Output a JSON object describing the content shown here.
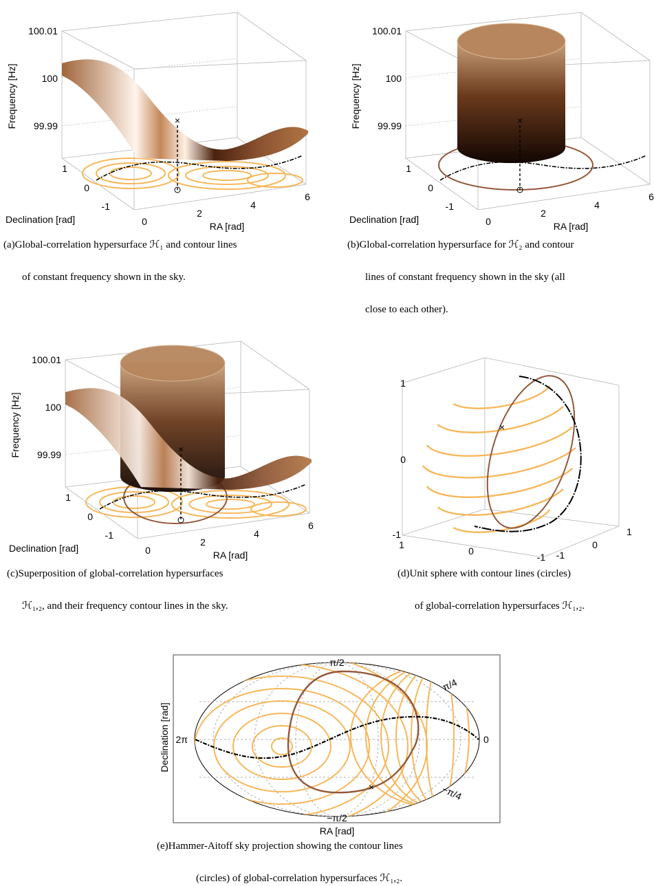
{
  "panels": [
    {
      "z_label": "Frequency [Hz]",
      "z_ticks": [
        "100.01",
        "100",
        "99.99"
      ],
      "y_label": "Declination [rad]",
      "y_ticks": [
        "1",
        "0",
        "-1"
      ],
      "x_label": "RA [rad]",
      "x_ticks": [
        "0",
        "2",
        "4",
        "6"
      ],
      "caption": [
        "(a)Global-correlation hypersurface ℋ₁ and contour lines",
        "of constant frequency shown in the sky."
      ]
    },
    {
      "z_label": "Frequency [Hz]",
      "z_ticks": [
        "100.01",
        "100",
        "99.99"
      ],
      "y_label": "Declination [rad]",
      "y_ticks": [
        "1",
        "0",
        "-1"
      ],
      "x_label": "RA [rad]",
      "x_ticks": [
        "0",
        "2",
        "4",
        "6"
      ],
      "caption": [
        "(b)Global-correlation hypersurface for ℋ₂ and contour",
        "lines of constant frequency shown in the sky (all",
        "close to each other)."
      ]
    },
    {
      "z_label": "Frequency [Hz]",
      "z_ticks": [
        "100.01",
        "100",
        "99.99"
      ],
      "y_label": "Declination [rad]",
      "y_ticks": [
        "1",
        "0",
        "-1"
      ],
      "x_label": "RA [rad]",
      "x_ticks": [
        "0",
        "2",
        "4",
        "6"
      ],
      "caption": [
        "(c)Superposition of global-correlation hypersurfaces",
        "ℋ₁,₂, and their frequency contour lines in the sky."
      ]
    },
    {
      "z_ticks": [
        "1",
        "0",
        "-1"
      ],
      "x_ticks": [
        "1",
        "0",
        "-1"
      ],
      "y_ticks": [
        "-1",
        "0",
        "1"
      ],
      "caption": [
        "(d)Unit sphere with contour lines (circles)",
        "of global-correlation hypersurfaces ℋ₁,₂."
      ]
    },
    {
      "y_label": "Declination [rad]",
      "x_label": "RA [rad]",
      "lat_labels": [
        "π/2",
        "π/4",
        "−π/4",
        "−π/2"
      ],
      "ra_labels": [
        "2π",
        "0"
      ],
      "caption": [
        "(e)Hammer-Aitoff sky projection showing the contour lines",
        "(circles) of global-correlation hypersurfaces ℋ₁,₂."
      ]
    }
  ]
}
